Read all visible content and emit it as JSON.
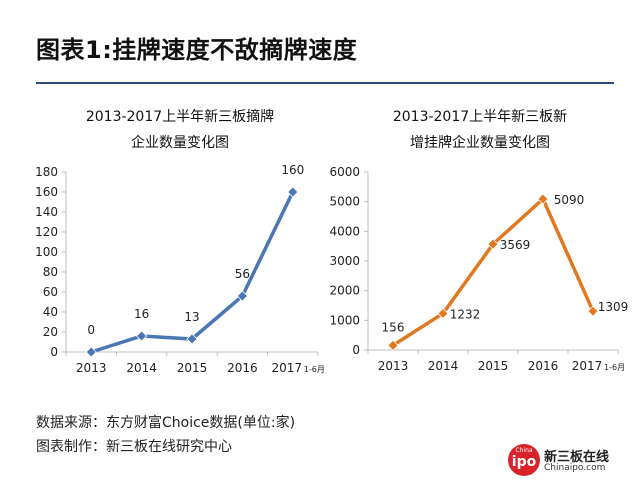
{
  "page_title": "图表1:挂牌速度不敌摘牌速度",
  "footer": {
    "source": "数据来源：东方财富Choice数据(单位:家)",
    "maker": "图表制作：新三板在线研究中心"
  },
  "logo": {
    "badge_small": "China",
    "badge_big": "ipo",
    "name": "新三板在线",
    "url": "Chinaipo.com"
  },
  "colors": {
    "left_series": "#4a76b4",
    "right_series": "#e07820",
    "axis": "#bfbfbf",
    "rule": "#2e4a7a"
  },
  "chart_data": [
    {
      "type": "line",
      "title_line1": "2013-2017上半年新三板摘牌",
      "title_line2": "企业数量变化图",
      "categories": [
        "2013",
        "2014",
        "2015",
        "2016",
        "2017"
      ],
      "last_category_suffix": "1-6月",
      "values": [
        0,
        16,
        13,
        56,
        160
      ],
      "data_labels": [
        "0",
        "16",
        "13",
        "56",
        "160"
      ],
      "ylim": [
        0,
        180
      ],
      "yticks": [
        "0",
        "20",
        "40",
        "60",
        "80",
        "100",
        "120",
        "140",
        "160",
        "180"
      ]
    },
    {
      "type": "line",
      "title_line1": "2013-2017上半年新三板新",
      "title_line2": "增挂牌企业数量变化图",
      "categories": [
        "2013",
        "2014",
        "2015",
        "2016",
        "2017"
      ],
      "last_category_suffix": "1-6月",
      "values": [
        156,
        1232,
        3569,
        5090,
        1309
      ],
      "data_labels": [
        "156",
        "1232",
        "3569",
        "5090",
        "1309"
      ],
      "ylim": [
        0,
        6000
      ],
      "yticks": [
        "0",
        "1000",
        "2000",
        "3000",
        "4000",
        "5000",
        "6000"
      ]
    }
  ]
}
